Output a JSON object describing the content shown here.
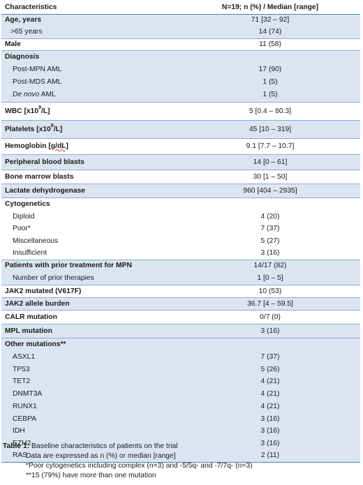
{
  "header": {
    "characteristic": "Characteristics",
    "value": "N=19; n (%) / Median [range]"
  },
  "rows": [
    {
      "label": "Age, years",
      "value": "71 [32 – 92]",
      "bold": true,
      "shade": true,
      "group_start": true,
      "h": 17
    },
    {
      "label": ">65 years",
      "value": "14 (74)",
      "indent": "ind2",
      "shade": true,
      "h": 18
    },
    {
      "label": "Male",
      "value": "11 (58)",
      "bold": true,
      "shade": false,
      "group_start": true,
      "h": 17
    },
    {
      "label": "Diagnosis",
      "value": "",
      "bold": true,
      "shade": true,
      "group_start": true,
      "h": 19
    },
    {
      "label": "Post-MPN AML",
      "value": "17 (90)",
      "indent": "ind",
      "shade": true,
      "h": 17
    },
    {
      "label": "Post-MDS AML",
      "value": "1 (5)",
      "indent": "ind",
      "shade": true,
      "h": 18
    },
    {
      "label_parts": [
        "De novo",
        " AML"
      ],
      "value": "1 (5)",
      "indent": "ind",
      "italic_first": true,
      "shade": true,
      "h": 20
    },
    {
      "label_html": "wbc",
      "label_a": "WBC [x10",
      "label_sup": "9",
      "label_b": "/L]",
      "value": "5 [0.4 – 80.3]",
      "bold": true,
      "shade": false,
      "group_start": true,
      "h": 26
    },
    {
      "label_html": "plt",
      "label_a": "Platelets [x10",
      "label_sup": "9",
      "label_b": "/L]",
      "value": "45 [10 – 319]",
      "bold": true,
      "shade": true,
      "group_start": true,
      "h": 26
    },
    {
      "label_html": "hgb",
      "label_a": "Hemoglobin ",
      "label_ul": "[g/dL]",
      "value": "9.1 [7.7 – 10.7]",
      "bold": true,
      "shade": false,
      "group_start": true,
      "h": 23
    },
    {
      "label": "Peripheral blood blasts",
      "value": "14 [0 – 61]",
      "bold": true,
      "shade": true,
      "group_start": true,
      "h": 22
    },
    {
      "label": "Bone marrow blasts",
      "value": "30 [1 – 50]",
      "bold": true,
      "shade": false,
      "group_start": true,
      "h": 20
    },
    {
      "label": "Lactate dehydrogenase",
      "value": "960 [404 – 2935]",
      "bold": true,
      "shade": true,
      "group_start": true,
      "h": 20
    },
    {
      "label": "Cytogenetics",
      "value": "",
      "bold": true,
      "shade": false,
      "group_start": true,
      "h": 19
    },
    {
      "label": "Diploid",
      "value": "4 (20)",
      "indent": "ind",
      "shade": false,
      "h": 17
    },
    {
      "label": "Poor*",
      "value": "7 (37)",
      "indent": "ind",
      "shade": false,
      "h": 17
    },
    {
      "label": "Miscellaneous",
      "value": "5 (27)",
      "indent": "ind",
      "shade": false,
      "h": 18
    },
    {
      "label": "Insufficient",
      "value": "3 (16)",
      "indent": "ind",
      "shade": false,
      "h": 18
    },
    {
      "label": "Patients with prior treatment for MPN",
      "value": "14/17 (82)",
      "bold": true,
      "shade": true,
      "group_start": true,
      "h": 17
    },
    {
      "label": "Number of prior therapies",
      "value": "1 [0 – 5]",
      "indent": "ind",
      "shade": true,
      "h": 19
    },
    {
      "label": "JAK2 mutated (V617F)",
      "value": "10 (53)",
      "bold": true,
      "shade": false,
      "group_start": true,
      "h": 18
    },
    {
      "label": "JAK2 allele burden",
      "value": "36.7 [4 – 59.5]",
      "bold": true,
      "shade": true,
      "group_start": true,
      "h": 18
    },
    {
      "label": "CALR mutation",
      "value": "0/7 (0)",
      "bold": true,
      "shade": false,
      "group_start": true,
      "h": 20
    },
    {
      "label": "MPL mutation",
      "value": "3 (16)",
      "bold": true,
      "shade": true,
      "group_start": true,
      "h": 20
    },
    {
      "label": "Other mutations**",
      "value": "",
      "bold": true,
      "shade": true,
      "group_start": true,
      "h": 19
    },
    {
      "label": "ASXL1",
      "value": "7 (37)",
      "indent": "ind",
      "shade": true,
      "h": 17
    },
    {
      "label": "TP53",
      "value": "5 (26)",
      "indent": "ind",
      "shade": true,
      "h": 18
    },
    {
      "label": "TET2",
      "value": "4 (21)",
      "indent": "ind",
      "shade": true,
      "h": 17
    },
    {
      "label": "DNMT3A",
      "value": "4 (21)",
      "indent": "ind",
      "shade": true,
      "h": 18
    },
    {
      "label": "RUNX1",
      "value": "4 (21)",
      "indent": "ind",
      "shade": true,
      "h": 18
    },
    {
      "label": "CEBPA",
      "value": "3 (16)",
      "indent": "ind",
      "shade": true,
      "h": 18
    },
    {
      "label": "IDH",
      "value": "3 (16)",
      "indent": "ind",
      "shade": true,
      "h": 17
    },
    {
      "label": "EZH2",
      "value": "3 (16)",
      "indent": "ind",
      "shade": true,
      "h": 18
    },
    {
      "label": "RAS",
      "value": "2 (11)",
      "indent": "ind",
      "shade": true,
      "h": 18
    }
  ],
  "caption": {
    "label": "Table 1:",
    "line1": " Baseline characteristics of patients on the trial",
    "line2": "Data are expressed as n (%) or median [range]",
    "line3": "*Poor cytogenetics including complex (n=3) and -5/5q- and -7/7q- (n=3)",
    "line4": "**15 (79%) have more than one mutation"
  }
}
